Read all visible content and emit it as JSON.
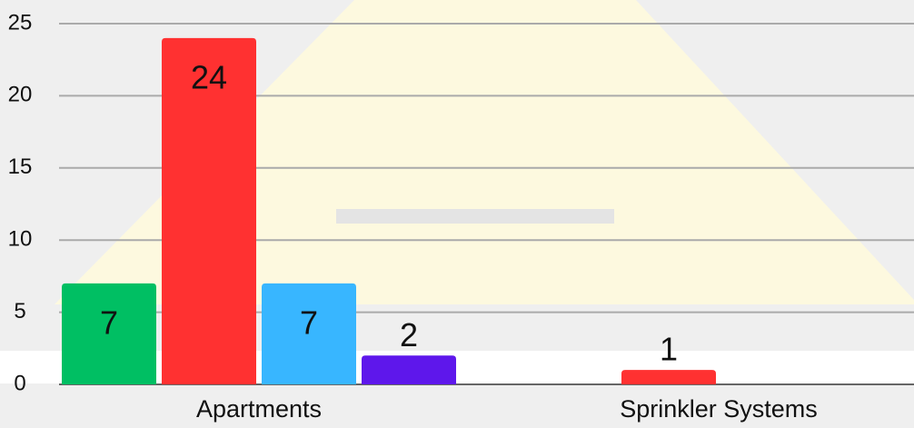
{
  "chart_data": {
    "type": "bar",
    "categories": [
      "Apartments",
      "Sprinkler Systems"
    ],
    "series": [
      {
        "color": "#00bf63",
        "values": [
          7,
          null
        ]
      },
      {
        "color": "#ff3131",
        "values": [
          24,
          1
        ]
      },
      {
        "color": "#38b6ff",
        "values": [
          7,
          null
        ]
      },
      {
        "color": "#5e17eb",
        "values": [
          2,
          null
        ]
      }
    ],
    "ylim": [
      0,
      25
    ],
    "yticks": [
      0,
      5,
      10,
      15,
      20,
      25
    ],
    "grid": true
  }
}
